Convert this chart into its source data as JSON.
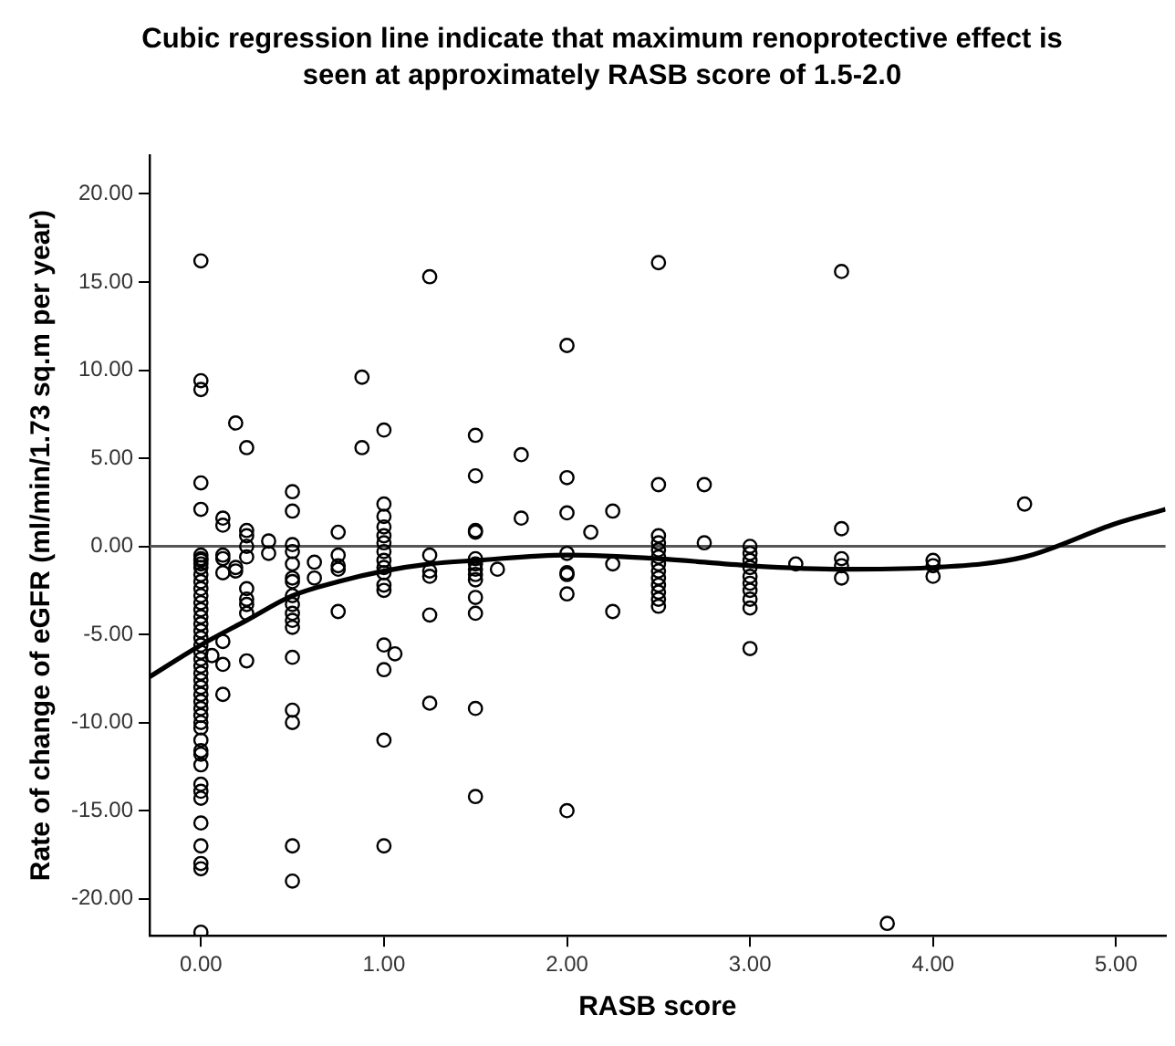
{
  "chart_data": {
    "type": "scatter",
    "title": "Cubic regression line indicate that maximum renoprotective effect is seen at approximately RASB score of 1.5-2.0",
    "xlabel": "RASB score",
    "ylabel": "Rate of change of eGFR (ml/min/1.73 sq.m per year)",
    "xlim": [
      -0.28,
      5.27
    ],
    "xticks": [
      {
        "value": 0,
        "label": "0.00"
      },
      {
        "value": 1,
        "label": "1.00"
      },
      {
        "value": 2,
        "label": "2.00"
      },
      {
        "value": 3,
        "label": "3.00"
      },
      {
        "value": 4,
        "label": "4.00"
      },
      {
        "value": 5,
        "label": "5.00"
      }
    ],
    "ylim": [
      -22.1,
      22.2
    ],
    "yticks": [
      {
        "value": -20,
        "label": "-20.00"
      },
      {
        "value": -15,
        "label": "-15.00"
      },
      {
        "value": -10,
        "label": "-10.00"
      },
      {
        "value": -5,
        "label": "-5.00"
      },
      {
        "value": 0,
        "label": "0.00"
      },
      {
        "value": 5,
        "label": "5.00"
      },
      {
        "value": 10,
        "label": "10.00"
      },
      {
        "value": 15,
        "label": "15.00"
      },
      {
        "value": 20,
        "label": "20.00"
      }
    ],
    "grid": false,
    "legend": false,
    "ref_lines": [
      {
        "axis": "y",
        "value": 0,
        "color": "#555555"
      }
    ],
    "series": [
      {
        "color": "#000000",
        "marker": "circle",
        "x": [
          0,
          0,
          0,
          0,
          0,
          0,
          0,
          0,
          0,
          0,
          0,
          0,
          0,
          0,
          0,
          0,
          0,
          0,
          0,
          0,
          0,
          0,
          0,
          0,
          0,
          0,
          0,
          0,
          0,
          0,
          0,
          0,
          0,
          0,
          0,
          0,
          0,
          0,
          0,
          0,
          0,
          0,
          0,
          0,
          0,
          0.06,
          0.12,
          0.12,
          0.12,
          0.12,
          0.12,
          0.12,
          0.12,
          0.12,
          0.19,
          0.19,
          0.19,
          0.25,
          0.25,
          0.25,
          0.25,
          0.25,
          0.25,
          0.25,
          0.25,
          0.25,
          0.25,
          0.37,
          0.37,
          0.5,
          0.5,
          0.5,
          0.5,
          0.5,
          0.5,
          0.5,
          0.5,
          0.5,
          0.5,
          0.5,
          0.5,
          0.5,
          0.5,
          0.5,
          0.5,
          0.5,
          0.62,
          0.62,
          0.75,
          0.75,
          0.75,
          0.75,
          0.75,
          0.88,
          0.88,
          1,
          1,
          1,
          1,
          1,
          1,
          1,
          1,
          1,
          1,
          1,
          1,
          1,
          1,
          1,
          1,
          1.06,
          1.25,
          1.25,
          1.25,
          1.25,
          1.25,
          1.25,
          1.5,
          1.5,
          1.5,
          1.5,
          1.5,
          1.5,
          1.5,
          1.5,
          1.5,
          1.5,
          1.5,
          1.5,
          1.5,
          1.62,
          1.75,
          1.75,
          2,
          2,
          2,
          2,
          2,
          2,
          2,
          2,
          2.13,
          2.25,
          2.25,
          2.25,
          2.5,
          2.5,
          2.5,
          2.5,
          2.5,
          2.5,
          2.5,
          2.5,
          2.5,
          2.5,
          2.5,
          2.5,
          2.5,
          2.75,
          2.75,
          3,
          3,
          3,
          3,
          3,
          3,
          3,
          3,
          3,
          3,
          3.25,
          3.5,
          3.5,
          3.5,
          3.5,
          3.5,
          3.75,
          4,
          4,
          4,
          4.5
        ],
        "values": [
          16.2,
          9.4,
          8.9,
          3.6,
          2.1,
          -0.5,
          -0.8,
          -1.2,
          -1.6,
          -2.0,
          -2.4,
          -2.8,
          -3.2,
          -3.6,
          -4.0,
          -4.4,
          -4.8,
          -5.2,
          -5.6,
          -6.0,
          -6.4,
          -6.8,
          -7.2,
          -7.6,
          -8.0,
          -8.4,
          -8.8,
          -9.2,
          -9.6,
          -10.0,
          -10.3,
          -11.0,
          -11.6,
          -11.8,
          -12.4,
          -13.5,
          -13.9,
          -14.3,
          -15.7,
          -17.0,
          -18.0,
          -18.3,
          -21.9,
          -0.7,
          -1.0,
          -6.2,
          1.6,
          1.2,
          -0.5,
          -0.7,
          -1.5,
          -5.4,
          -6.7,
          -8.4,
          7.0,
          -1.2,
          -1.4,
          5.6,
          0.9,
          0.6,
          0.0,
          -0.6,
          -2.4,
          -3.0,
          -3.3,
          -3.8,
          -6.5,
          0.3,
          -0.4,
          3.1,
          2.0,
          0.1,
          -0.3,
          -1.0,
          -1.8,
          -2.0,
          -2.8,
          -3.3,
          -3.8,
          -4.2,
          -4.6,
          -6.3,
          -9.3,
          -10.0,
          -17.0,
          -19.0,
          -0.9,
          -1.8,
          0.8,
          -0.5,
          -1.1,
          -1.3,
          -3.7,
          9.6,
          5.6,
          6.6,
          2.4,
          1.7,
          1.1,
          0.6,
          0.2,
          -0.3,
          -0.8,
          -1.2,
          -1.5,
          -2.2,
          -2.5,
          -5.6,
          -7.0,
          -11.0,
          -17.0,
          -6.1,
          15.3,
          -0.5,
          -1.4,
          -1.7,
          -3.9,
          -8.9,
          6.3,
          4.0,
          0.9,
          0.8,
          -0.7,
          -1.0,
          -1.3,
          -1.6,
          -1.9,
          -2.9,
          -3.8,
          -9.2,
          -14.2,
          -1.3,
          5.2,
          1.6,
          11.4,
          3.9,
          1.9,
          -0.4,
          -1.5,
          -1.6,
          -2.7,
          -15.0,
          0.8,
          2.0,
          -1.0,
          -3.7,
          16.1,
          3.5,
          0.6,
          0.2,
          -0.2,
          -0.6,
          -1.0,
          -1.4,
          -1.8,
          -2.2,
          -2.6,
          -3.0,
          -3.4,
          3.5,
          0.2,
          0.0,
          -0.4,
          -0.8,
          -1.2,
          -1.7,
          -2.1,
          -2.5,
          -3.0,
          -3.5,
          -5.8,
          -1.0,
          15.6,
          1.0,
          -0.7,
          -1.1,
          -1.8,
          -21.4,
          -0.8,
          -1.1,
          -1.7,
          2.4
        ]
      },
      {
        "type": "line",
        "color": "#000000",
        "x": [
          -0.28,
          0,
          0.25,
          0.5,
          0.75,
          1,
          1.25,
          1.5,
          2,
          2.5,
          3,
          3.5,
          4,
          4.5,
          5,
          5.27
        ],
        "values": [
          -7.4,
          -5.6,
          -4.2,
          -2.8,
          -2.0,
          -1.4,
          -1.0,
          -0.8,
          -0.5,
          -0.7,
          -1.1,
          -1.3,
          -1.2,
          -0.6,
          1.3,
          2.1
        ]
      }
    ]
  }
}
